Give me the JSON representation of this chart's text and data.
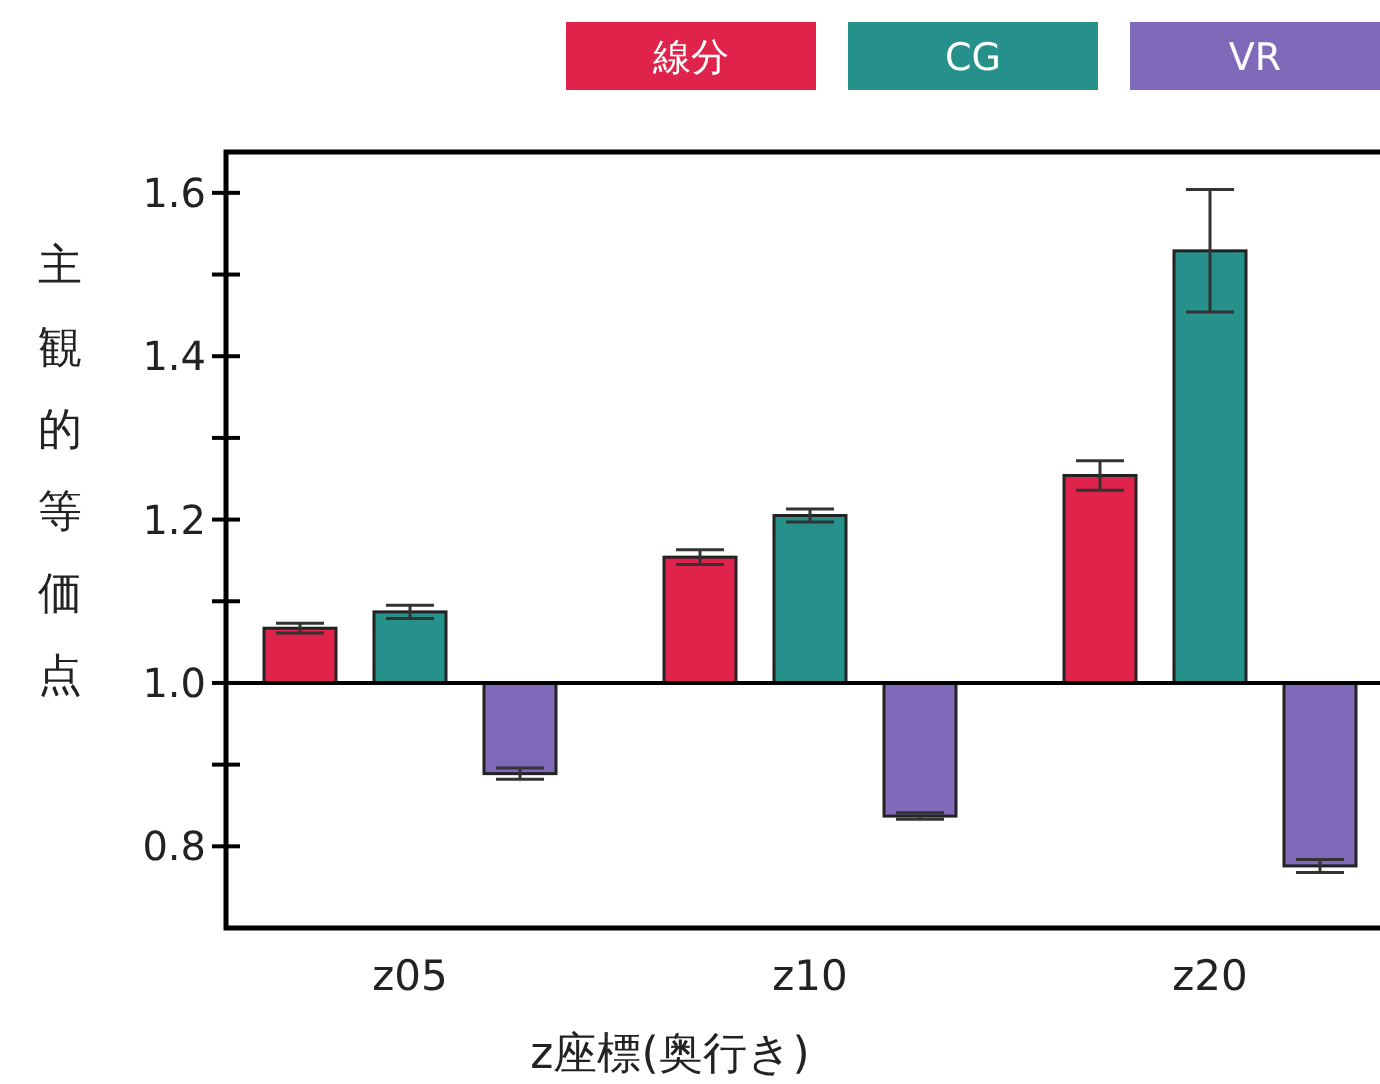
{
  "chart_data": {
    "type": "bar",
    "ylabel": "主観的等価点",
    "xlabel": "z座標(奥行き)",
    "categories": [
      "z05",
      "z10",
      "z20"
    ],
    "series": [
      {
        "name": "線分",
        "color": "#e0234a",
        "values": [
          0.067,
          0.154,
          0.254
        ],
        "base": [
          1,
          1,
          1
        ],
        "errors": [
          0.006,
          0.009,
          0.018
        ]
      },
      {
        "name": "CG",
        "color": "#25918a",
        "values": [
          0.087,
          0.205,
          0.529
        ],
        "base": [
          1,
          1,
          1
        ],
        "errors": [
          0.008,
          0.008,
          0.075
        ]
      },
      {
        "name": "VR",
        "color": "#7f69b8",
        "values": [
          -0.111,
          -0.163,
          -0.224
        ],
        "base": [
          1,
          1,
          1
        ],
        "errors": [
          0.007,
          0.004,
          0.008
        ]
      }
    ],
    "ylim": [
      0.7,
      1.65
    ],
    "yticks": [
      0.8,
      {
        "value": 0.9,
        "label": null
      },
      {
        "value": 1,
        "label": "1.0"
      },
      {
        "value": 1.1,
        "label": null
      },
      1.2,
      {
        "value": 1.3,
        "label": null
      },
      1.4,
      {
        "value": 1.5,
        "label": null
      },
      1.6
    ],
    "ref_lines": [
      {
        "axis": "y",
        "value": 1
      }
    ],
    "legend": "top right",
    "grid": false
  }
}
